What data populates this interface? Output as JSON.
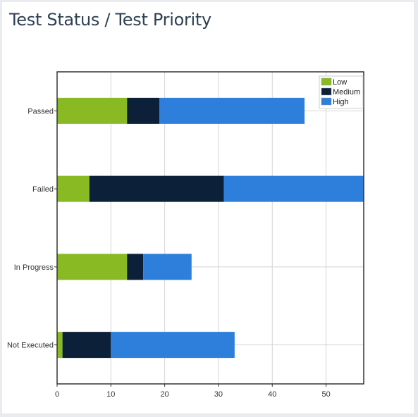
{
  "panel": {
    "title": "Test Status / Test Priority"
  },
  "chart_data": {
    "type": "bar",
    "orientation": "horizontal",
    "stacked": true,
    "title": "Test Status / Test Priority",
    "xlabel": "",
    "ylabel": "",
    "categories": [
      "Passed",
      "Failed",
      "In Progress",
      "Not Executed"
    ],
    "series": [
      {
        "name": "Low",
        "color": "#8aba23",
        "values": [
          13,
          6,
          13,
          1
        ]
      },
      {
        "name": "Medium",
        "color": "#0d2039",
        "values": [
          6,
          25,
          3,
          9
        ]
      },
      {
        "name": "High",
        "color": "#2e7fdb",
        "values": [
          27,
          26,
          9,
          23
        ]
      }
    ],
    "xlim": [
      0,
      57
    ],
    "xticks": [
      0,
      10,
      20,
      30,
      40,
      50
    ],
    "grid": true,
    "legend": "top-right"
  }
}
